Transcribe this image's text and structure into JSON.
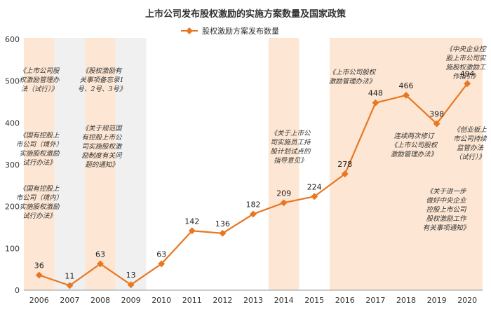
{
  "chart_data": {
    "type": "line",
    "title": "上市公司发布股权激励的实施方案数量及国家政策",
    "x": [
      "2006",
      "2007",
      "2008",
      "2009",
      "2010",
      "2011",
      "2012",
      "2013",
      "2014",
      "2015",
      "2016",
      "2017",
      "2018",
      "2019",
      "2020"
    ],
    "series": [
      {
        "name": "股权激励方案发布数量",
        "values": [
          36,
          11,
          63,
          13,
          63,
          142,
          136,
          182,
          209,
          224,
          278,
          448,
          466,
          398,
          494
        ]
      }
    ],
    "ylim": [
      0,
      600
    ],
    "yticks": [
      0,
      100,
      200,
      300,
      400,
      500,
      600
    ],
    "legend_position": "top",
    "grid": false,
    "colors": {
      "line": "#e87722",
      "band_orange": "#fde6d3",
      "band_gray": "#f0f0f0"
    },
    "highlight_bands": [
      {
        "year": "2006",
        "color": "orange"
      },
      {
        "year": "2007",
        "color": "gray"
      },
      {
        "year": "2008",
        "color": "orange"
      },
      {
        "year": "2009",
        "color": "gray"
      },
      {
        "year": "2014",
        "color": "orange"
      },
      {
        "year": "2016",
        "color": "orange"
      },
      {
        "year": "2017",
        "color": "orange"
      },
      {
        "year": "2018",
        "color": "orange"
      },
      {
        "year": "2019",
        "color": "orange"
      },
      {
        "year": "2020",
        "color": "orange"
      }
    ],
    "annotations": [
      {
        "id": "a2006a",
        "lines": [
          "《上市公司股",
          "权激励管理办",
          "法（试行）》"
        ]
      },
      {
        "id": "a2006b",
        "lines": [
          "《国有控股上",
          "市公司（境外）",
          "实施股权激励",
          "试行办法》"
        ]
      },
      {
        "id": "a2006c",
        "lines": [
          "《国有控股上",
          "市公司（境内）",
          "实施股权激励",
          "试行办法》"
        ]
      },
      {
        "id": "a2008a",
        "lines": [
          "《股权激励有",
          "关事项备忘录1",
          "号、2号、3号》"
        ]
      },
      {
        "id": "a2008b",
        "lines": [
          "《关于规范国",
          "有控股上市公",
          "司实施股权激",
          "励制度有关问",
          "题的通知》"
        ]
      },
      {
        "id": "a2014",
        "lines": [
          "《关于上市公",
          "司实施员工持",
          "股计划试点的",
          "指导意见》"
        ]
      },
      {
        "id": "a2016",
        "lines": [
          "《上市公司股权",
          "激励管理办法》"
        ]
      },
      {
        "id": "a2018",
        "lines": [
          "连续两次修订",
          "《上市公司股权",
          "激励管理办法》"
        ]
      },
      {
        "id": "a2019",
        "lines": [
          "《关于进一步",
          "做好中央企业",
          "控股上市公司",
          "股权激励工作",
          "有关事项通知》"
        ]
      },
      {
        "id": "a2020a",
        "lines": [
          "《中央企业控",
          "股上市公司实",
          "施股权激励工",
          "作指引》"
        ]
      },
      {
        "id": "a2020b",
        "lines": [
          "《创业板上",
          "市公司持续",
          "监管办法",
          "（试行）》"
        ]
      }
    ]
  }
}
